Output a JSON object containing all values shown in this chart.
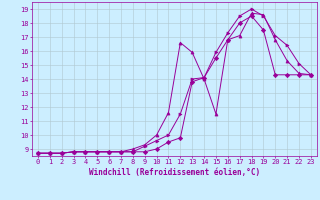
{
  "title": "",
  "xlabel": "Windchill (Refroidissement éolien,°C)",
  "ylabel": "",
  "background_color": "#cceeff",
  "grid_color": "#b0c8d0",
  "line_color": "#990099",
  "xlim": [
    -0.5,
    23.5
  ],
  "ylim": [
    8.5,
    19.5
  ],
  "yticks": [
    9,
    10,
    11,
    12,
    13,
    14,
    15,
    16,
    17,
    18,
    19
  ],
  "xticks": [
    0,
    1,
    2,
    3,
    4,
    5,
    6,
    7,
    8,
    9,
    10,
    11,
    12,
    13,
    14,
    15,
    16,
    17,
    18,
    19,
    20,
    21,
    22,
    23
  ],
  "series": [
    {
      "x": [
        0,
        1,
        2,
        3,
        4,
        5,
        6,
        7,
        8,
        9,
        10,
        11,
        12,
        13,
        14,
        15,
        16,
        17,
        18,
        19,
        20,
        21,
        22,
        23
      ],
      "y": [
        8.7,
        8.7,
        8.7,
        8.8,
        8.8,
        8.8,
        8.8,
        8.8,
        8.8,
        9.2,
        9.6,
        10.0,
        11.5,
        14.0,
        14.1,
        15.9,
        17.3,
        18.5,
        19.0,
        18.5,
        17.1,
        16.4,
        15.1,
        14.3
      ],
      "marker": ">"
    },
    {
      "x": [
        0,
        1,
        2,
        3,
        4,
        5,
        6,
        7,
        8,
        9,
        10,
        11,
        12,
        13,
        14,
        15,
        16,
        17,
        18,
        19,
        20,
        21,
        22,
        23
      ],
      "y": [
        8.7,
        8.7,
        8.7,
        8.8,
        8.8,
        8.8,
        8.8,
        8.8,
        9.0,
        9.3,
        10.0,
        11.6,
        16.6,
        15.9,
        14.0,
        11.5,
        16.8,
        17.1,
        18.7,
        18.6,
        16.8,
        15.3,
        14.4,
        14.3
      ],
      "marker": "^"
    },
    {
      "x": [
        0,
        1,
        2,
        3,
        4,
        5,
        6,
        7,
        8,
        9,
        10,
        11,
        12,
        13,
        14,
        15,
        16,
        17,
        18,
        19,
        20,
        21,
        22,
        23
      ],
      "y": [
        8.7,
        8.7,
        8.7,
        8.8,
        8.8,
        8.8,
        8.8,
        8.8,
        8.8,
        8.8,
        9.0,
        9.5,
        9.8,
        13.8,
        14.1,
        15.5,
        16.8,
        18.0,
        18.5,
        17.5,
        14.3,
        14.3,
        14.3,
        14.3
      ],
      "marker": "D"
    }
  ],
  "tick_fontsize": 5.0,
  "xlabel_fontsize": 5.5,
  "linewidth": 0.7,
  "markersize": 2.2
}
